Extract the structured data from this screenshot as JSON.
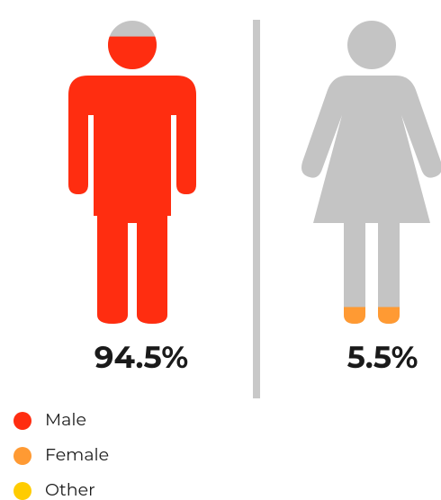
{
  "chart_data": {
    "type": "pictogram",
    "ylim": [
      0,
      100
    ],
    "series": [
      {
        "name": "Male",
        "color": "#ff2d10",
        "value": 94.5,
        "value_label": "94.5%"
      },
      {
        "name": "Female",
        "color": "#ff9a33",
        "value": 5.5,
        "value_label": "5.5%"
      },
      {
        "name": "Other",
        "color": "#ffcc00"
      }
    ]
  }
}
